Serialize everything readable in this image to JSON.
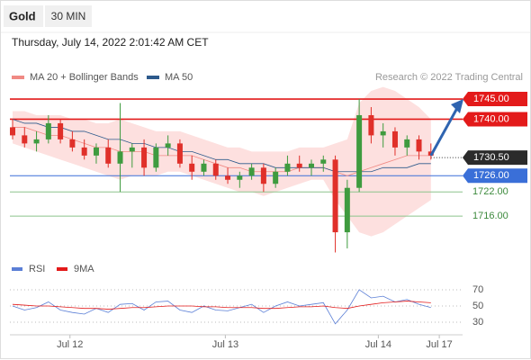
{
  "chart_data": {
    "type": "candlestick",
    "title": "Gold",
    "timeframe": "30 MIN",
    "subtitle": "Thursday, July 14, 2022 2:01:42 AM CET",
    "credit": "Research © 2022 Trading Central",
    "x": [
      0,
      1,
      2,
      3,
      4,
      5,
      6,
      7,
      8,
      9,
      10,
      11,
      12,
      13,
      14,
      15,
      16,
      17,
      18,
      19,
      20,
      21,
      22,
      23,
      24,
      25,
      26,
      27,
      28,
      29,
      30,
      31,
      32,
      33,
      34,
      35
    ],
    "xlim": [
      0,
      37.5
    ],
    "xticks": [
      {
        "value": 4.8,
        "label": "Jul 12"
      },
      {
        "value": 17.8,
        "label": "Jul 13"
      },
      {
        "value": 30.6,
        "label": "Jul 14"
      },
      {
        "value": 35.7,
        "label": "Jul 17"
      }
    ],
    "ylim": [
      1706,
      1748.35
    ],
    "up_color": "#3f9b3f",
    "down_color": "#e0302a",
    "open": [
      1738,
      1736,
      1734,
      1735,
      1739,
      1735,
      1733,
      1731,
      1733,
      1729,
      1732,
      1733,
      1728,
      1733,
      1734,
      1729,
      1727,
      1729,
      1726,
      1725,
      1726,
      1728,
      1724,
      1727,
      1729,
      1728,
      1729,
      1730,
      1712,
      1723,
      1741,
      1736,
      1737,
      1733,
      1735,
      1732
    ],
    "high": [
      1740,
      1738,
      1737,
      1741,
      1740,
      1737,
      1735,
      1734,
      1735,
      1744,
      1734,
      1735,
      1734,
      1736,
      1735,
      1731,
      1730,
      1730,
      1728,
      1727,
      1729,
      1729,
      1728,
      1731,
      1731,
      1730,
      1731,
      1731,
      1725,
      1745,
      1743,
      1739,
      1738,
      1736,
      1736,
      1734
    ],
    "low": [
      1735,
      1733,
      1732,
      1734,
      1734,
      1732,
      1730,
      1729,
      1728,
      1722,
      1728,
      1726,
      1727,
      1731,
      1728,
      1725,
      1726,
      1725,
      1724,
      1723,
      1725,
      1722,
      1723,
      1726,
      1727,
      1726,
      1727,
      1707,
      1708,
      1722,
      1734,
      1733,
      1731,
      1731,
      1730,
      1730
    ],
    "close": [
      1736,
      1734,
      1735,
      1739,
      1735,
      1733,
      1731,
      1733,
      1729,
      1732,
      1733,
      1728,
      1733,
      1734,
      1729,
      1727,
      1729,
      1726,
      1725,
      1726,
      1728,
      1724,
      1727,
      1729,
      1728,
      1729,
      1730,
      1712,
      1723,
      1741,
      1736,
      1737,
      1733,
      1735,
      1732,
      1731
    ],
    "series": [
      {
        "name": "MA 20 + Bollinger Bands",
        "color": "#f08a84",
        "values": [
          1738,
          1738,
          1737,
          1736,
          1736,
          1735,
          1734,
          1733,
          1733,
          1732,
          1732,
          1732,
          1731,
          1731,
          1731,
          1731,
          1730,
          1729,
          1728,
          1728,
          1727,
          1727,
          1727,
          1727,
          1728,
          1728,
          1728,
          1727,
          1726,
          1727,
          1728,
          1729,
          1730,
          1731,
          1731,
          1731
        ],
        "upper": [
          1742,
          1742,
          1741,
          1741,
          1741,
          1740,
          1740,
          1739,
          1739,
          1740,
          1739,
          1738,
          1737,
          1737,
          1737,
          1736,
          1735,
          1734,
          1733,
          1733,
          1732,
          1732,
          1732,
          1732,
          1733,
          1733,
          1733,
          1734,
          1735,
          1744,
          1747,
          1748,
          1747,
          1745,
          1743,
          1740
        ],
        "lower": [
          1734,
          1733,
          1732,
          1731,
          1730,
          1729,
          1728,
          1727,
          1726,
          1725,
          1726,
          1726,
          1726,
          1727,
          1727,
          1726,
          1725,
          1724,
          1723,
          1722,
          1722,
          1721,
          1722,
          1723,
          1724,
          1725,
          1725,
          1720,
          1716,
          1712,
          1711,
          1712,
          1714,
          1716,
          1718,
          1720
        ],
        "band_color": "#fde0df"
      },
      {
        "name": "MA 50",
        "color": "#2d5a8c",
        "values": [
          1740,
          1739,
          1739,
          1738,
          1738,
          1737,
          1737,
          1736,
          1735,
          1735,
          1734,
          1734,
          1733,
          1733,
          1732,
          1732,
          1731,
          1730,
          1730,
          1729,
          1729,
          1729,
          1728,
          1728,
          1728,
          1728,
          1728,
          1727,
          1727,
          1727,
          1727,
          1728,
          1728,
          1728,
          1729,
          1729
        ]
      }
    ],
    "levels": [
      {
        "value": 1745,
        "label": "1745.00",
        "color": "#e31a1a",
        "style": "box"
      },
      {
        "value": 1740,
        "label": "1740.00",
        "color": "#e31a1a",
        "style": "box"
      },
      {
        "value": 1730.5,
        "label": "1730.50",
        "color": "#2b2b2b",
        "style": "current"
      },
      {
        "value": 1726,
        "label": "1726.00",
        "color": "#3a6fd8",
        "style": "box"
      },
      {
        "value": 1722,
        "label": "1722.00",
        "color": "#8cc48c",
        "style": "text"
      },
      {
        "value": 1716,
        "label": "1716.00",
        "color": "#8cc48c",
        "style": "text"
      }
    ],
    "forecast_color": "#2f64b0",
    "rsi": {
      "ylim": [
        22.2,
        74.4
      ],
      "yticks": [
        30,
        50,
        70
      ],
      "series": [
        {
          "name": "RSI",
          "color": "#5b7fd6",
          "values": [
            50,
            45,
            48,
            55,
            45,
            42,
            40,
            47,
            42,
            52,
            53,
            45,
            55,
            56,
            45,
            42,
            50,
            45,
            44,
            48,
            52,
            42,
            50,
            55,
            50,
            52,
            54,
            28,
            45,
            70,
            60,
            62,
            55,
            58,
            52,
            48
          ]
        },
        {
          "name": "9MA",
          "color": "#e31a1a",
          "values": [
            52,
            51,
            50,
            50,
            49,
            48,
            47,
            47,
            46,
            47,
            48,
            48,
            49,
            50,
            50,
            50,
            49,
            49,
            48,
            48,
            48,
            47,
            47,
            48,
            49,
            49,
            50,
            48,
            47,
            50,
            52,
            54,
            55,
            56,
            55,
            54
          ]
        }
      ]
    }
  }
}
